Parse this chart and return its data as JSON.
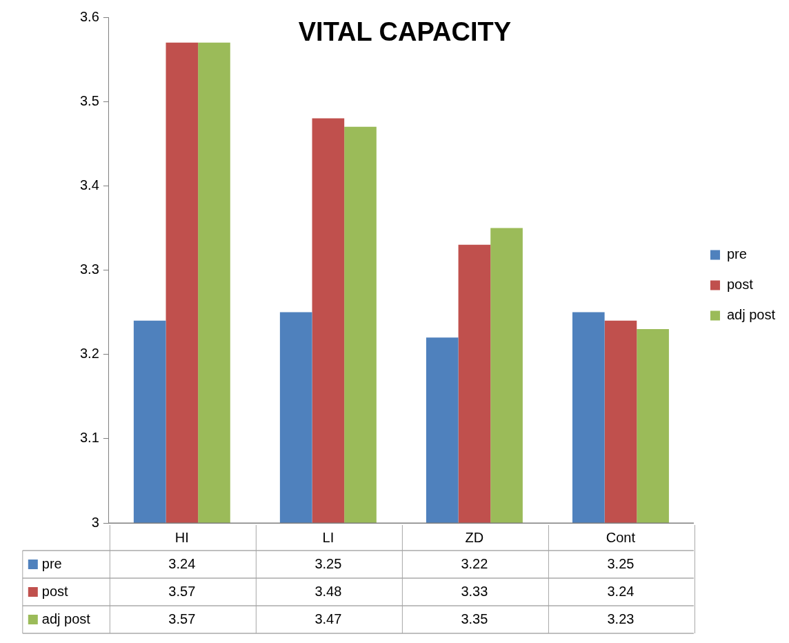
{
  "chart_data": {
    "type": "bar",
    "title": "VITAL CAPACITY",
    "categories": [
      "HI",
      "LI",
      "ZD",
      "Cont"
    ],
    "series": [
      {
        "name": "pre",
        "color": "#4f81bd",
        "values": [
          3.24,
          3.25,
          3.22,
          3.25
        ]
      },
      {
        "name": "post",
        "color": "#c0504d",
        "values": [
          3.57,
          3.48,
          3.33,
          3.24
        ]
      },
      {
        "name": "adj post",
        "color": "#9bbb59",
        "values": [
          3.57,
          3.47,
          3.35,
          3.23
        ]
      }
    ],
    "ylim": [
      3,
      3.6
    ],
    "yticks": [
      3,
      3.1,
      3.2,
      3.3,
      3.4,
      3.5,
      3.6
    ],
    "grid": false,
    "legend": "right",
    "data_labels": true
  }
}
